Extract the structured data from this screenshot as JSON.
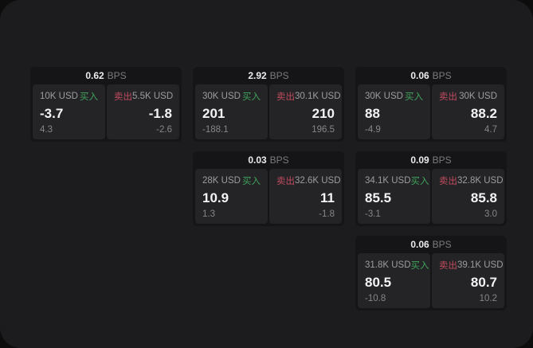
{
  "labels": {
    "bps": "BPS",
    "buy": "买入",
    "sell": "卖出"
  },
  "colors": {
    "buy_green": "#3fa35c",
    "sell_red": "#c14b5e",
    "panel_bg": "#1c1c1e",
    "card_bg": "#151517",
    "tile_bg": "#242427",
    "page_bg": "#0d0d0e"
  },
  "cards": [
    {
      "bps": "0.62",
      "buy": {
        "size": "10K USD",
        "price": "-3.7",
        "delta": "4.3"
      },
      "sell": {
        "size": "5.5K USD",
        "price": "-1.8",
        "delta": "-2.6"
      }
    },
    {
      "bps": "2.92",
      "buy": {
        "size": "30K USD",
        "price": "201",
        "delta": "-188.1"
      },
      "sell": {
        "size": "30.1K USD",
        "price": "210",
        "delta": "196.5"
      }
    },
    {
      "bps": "0.06",
      "buy": {
        "size": "30K USD",
        "price": "88",
        "delta": "-4.9"
      },
      "sell": {
        "size": "30K USD",
        "price": "88.2",
        "delta": "4.7"
      }
    },
    {
      "bps": "0.03",
      "buy": {
        "size": "28K USD",
        "price": "10.9",
        "delta": "1.3"
      },
      "sell": {
        "size": "32.6K USD",
        "price": "11",
        "delta": "-1.8"
      }
    },
    {
      "bps": "0.09",
      "buy": {
        "size": "34.1K USD",
        "price": "85.5",
        "delta": "-3.1"
      },
      "sell": {
        "size": "32.8K USD",
        "price": "85.8",
        "delta": "3.0"
      }
    },
    {
      "bps": "0.06",
      "buy": {
        "size": "31.8K USD",
        "price": "80.5",
        "delta": "-10.8"
      },
      "sell": {
        "size": "39.1K USD",
        "price": "80.7",
        "delta": "10.2"
      }
    }
  ]
}
